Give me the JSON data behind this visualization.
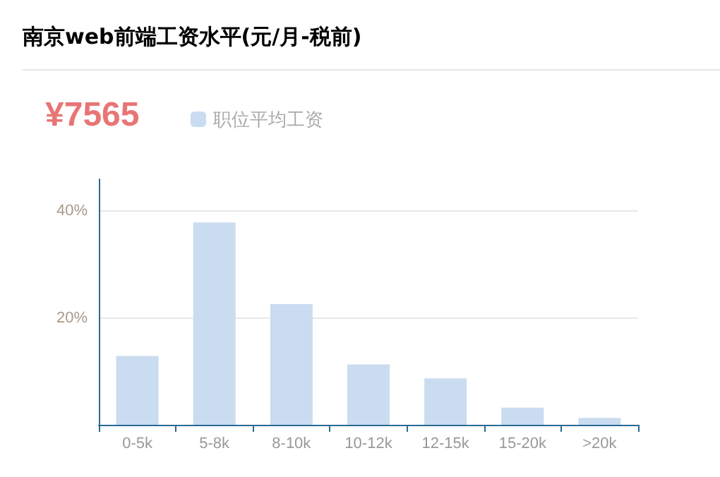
{
  "chart_data": {
    "type": "bar",
    "title": "南京web前端工资水平(元/月-税前)",
    "annotations": [
      "¥7565"
    ],
    "categories": [
      "0-5k",
      "5-8k",
      "8-10k",
      "10-12k",
      "12-15k",
      "15-20k",
      ">20k"
    ],
    "series": [
      {
        "name": "职位平均工资",
        "color": "#c9dcf0",
        "values": [
          12.9,
          37.9,
          22.6,
          11.3,
          8.7,
          3.2,
          1.3
        ]
      }
    ],
    "ylim": [
      0,
      46
    ],
    "yticks": [
      {
        "value": 20,
        "label": "20%"
      },
      {
        "value": 40,
        "label": "40%"
      }
    ],
    "grid": "y",
    "legend": "top left"
  }
}
